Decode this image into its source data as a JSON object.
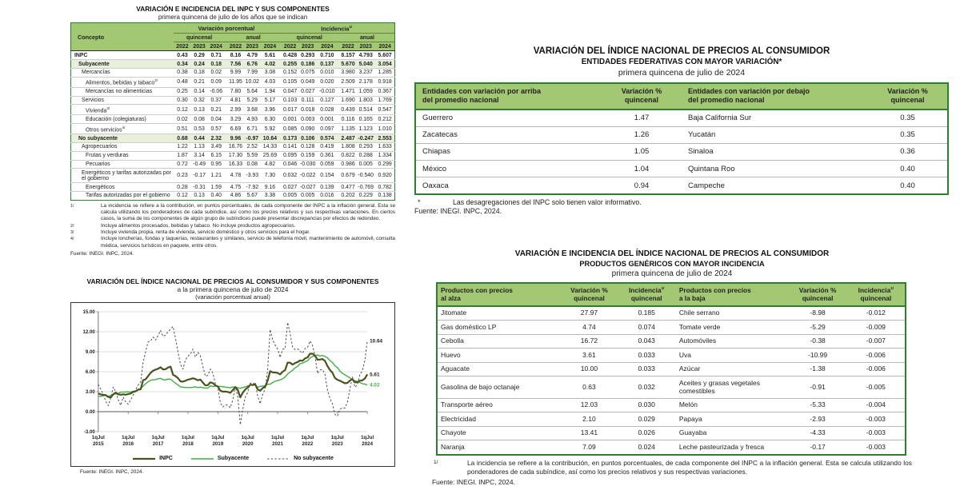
{
  "colors": {
    "header_green": "#a3c873",
    "border_green": "#2e7d33",
    "row_shade_green": "#e8f0db",
    "inpc_line": "#4c511f",
    "subyacente_line": "#3fae47",
    "no_subyacente_line": "#4f4f4f"
  },
  "table1": {
    "title": "VARIACIÓN E INCIDENCIA DEL INPC Y SUS COMPONENTES",
    "subtitle": "primera quincena de julio de los años que se indican",
    "col_concepto": "Concepto",
    "group1": "Variación porcentual",
    "group2": "Incidencia",
    "group2_sup": "1/",
    "sub_headers": [
      "quincenal",
      "anual",
      "quincenal",
      "anual"
    ],
    "years": [
      "2022",
      "2023",
      "2024"
    ],
    "rows": [
      {
        "label": "INPC",
        "sup": "",
        "indent": 0,
        "bold": true,
        "shade": false,
        "v": [
          "0.43",
          "0.29",
          "0.71",
          "8.16",
          "4.79",
          "5.61",
          "0.428",
          "0.293",
          "0.710",
          "8.157",
          "4.793",
          "5.607"
        ]
      },
      {
        "label": "Subyacente",
        "sup": "",
        "indent": 1,
        "bold": true,
        "shade": true,
        "v": [
          "0.34",
          "0.24",
          "0.18",
          "7.56",
          "6.76",
          "4.02",
          "0.255",
          "0.186",
          "0.137",
          "5.670",
          "5.040",
          "3.054"
        ]
      },
      {
        "label": "Mercancías",
        "sup": "",
        "indent": 2,
        "bold": false,
        "shade": false,
        "v": [
          "0.38",
          "0.18",
          "0.02",
          "9.99",
          "7.99",
          "3.08",
          "0.152",
          "0.075",
          "0.010",
          "3.980",
          "3.237",
          "1.285"
        ]
      },
      {
        "label": "Alimentos, bebidas y tabaco",
        "sup": "2/",
        "indent": 3,
        "bold": false,
        "shade": false,
        "v": [
          "0.48",
          "0.21",
          "0.09",
          "11.95",
          "10.02",
          "4.03",
          "0.105",
          "0.049",
          "0.020",
          "2.509",
          "2.178",
          "0.918"
        ]
      },
      {
        "label": "Mercancías no alimenticias",
        "sup": "",
        "indent": 3,
        "bold": false,
        "shade": false,
        "v": [
          "0.25",
          "0.14",
          "-0.06",
          "7.80",
          "5.64",
          "1.94",
          "0.047",
          "0.027",
          "-0.010",
          "1.471",
          "1.059",
          "0.367"
        ]
      },
      {
        "label": "Servicios",
        "sup": "",
        "indent": 2,
        "bold": false,
        "shade": false,
        "v": [
          "0.30",
          "0.32",
          "0.37",
          "4.81",
          "5.29",
          "5.17",
          "0.103",
          "0.111",
          "0.127",
          "1.690",
          "1.803",
          "1.769"
        ]
      },
      {
        "label": "Vivienda",
        "sup": "3/",
        "indent": 3,
        "bold": false,
        "shade": false,
        "v": [
          "0.12",
          "0.13",
          "0.21",
          "2.99",
          "3.68",
          "3.96",
          "0.017",
          "0.018",
          "0.028",
          "0.439",
          "0.514",
          "0.547"
        ]
      },
      {
        "label": "Educación (colegiaturas)",
        "sup": "",
        "indent": 3,
        "bold": false,
        "shade": false,
        "v": [
          "0.02",
          "0.08",
          "0.04",
          "3.29",
          "4.93",
          "6.30",
          "0.001",
          "0.003",
          "0.001",
          "0.116",
          "0.165",
          "0.212"
        ]
      },
      {
        "label": "Otros servicios",
        "sup": "4/",
        "indent": 3,
        "bold": false,
        "shade": false,
        "v": [
          "0.51",
          "0.53",
          "0.57",
          "6.69",
          "6.71",
          "5.92",
          "0.085",
          "0.090",
          "0.097",
          "1.135",
          "1.123",
          "1.010"
        ]
      },
      {
        "label": "No subyacente",
        "sup": "",
        "indent": 1,
        "bold": true,
        "shade": true,
        "v": [
          "0.68",
          "0.44",
          "2.32",
          "9.96",
          "-0.97",
          "10.64",
          "0.173",
          "0.106",
          "0.574",
          "2.487",
          "-0.247",
          "2.553"
        ]
      },
      {
        "label": "Agropecuarios",
        "sup": "",
        "indent": 2,
        "bold": false,
        "shade": false,
        "v": [
          "1.22",
          "1.13",
          "3.49",
          "16.76",
          "2.52",
          "14.33",
          "0.141",
          "0.128",
          "0.419",
          "1.808",
          "0.293",
          "1.633"
        ]
      },
      {
        "label": "Frutas y verduras",
        "sup": "",
        "indent": 3,
        "bold": false,
        "shade": false,
        "v": [
          "1.87",
          "3.14",
          "6.15",
          "17.30",
          "5.59",
          "25.69",
          "0.095",
          "0.159",
          "0.361",
          "0.822",
          "0.288",
          "1.334"
        ]
      },
      {
        "label": "Pecuarios",
        "sup": "",
        "indent": 3,
        "bold": false,
        "shade": false,
        "v": [
          "0.72",
          "-0.49",
          "0.95",
          "16.33",
          "0.08",
          "4.82",
          "0.046",
          "-0.030",
          "0.059",
          "0.986",
          "0.005",
          "0.299"
        ]
      },
      {
        "label": "Energéticos y tarifas autorizadas por el gobierno",
        "sup": "",
        "indent": 2,
        "bold": false,
        "shade": false,
        "v": [
          "0.23",
          "-0.17",
          "1.21",
          "4.78",
          "-3.93",
          "7.30",
          "0.032",
          "-0.022",
          "0.154",
          "0.679",
          "-0.540",
          "0.920"
        ]
      },
      {
        "label": "Energéticos",
        "sup": "",
        "indent": 3,
        "bold": false,
        "shade": false,
        "v": [
          "0.28",
          "-0.31",
          "1.59",
          "4.75",
          "-7.92",
          "9.16",
          "0.027",
          "-0.027",
          "0.139",
          "0.477",
          "-0.769",
          "0.782"
        ]
      },
      {
        "label": "Tarifas autorizadas por el gobierno",
        "sup": "",
        "indent": 3,
        "bold": false,
        "shade": false,
        "v": [
          "0.12",
          "0.13",
          "0.40",
          "4.86",
          "5.67",
          "3.38",
          "0.005",
          "0.005",
          "0.016",
          "0.202",
          "0.229",
          "0.138"
        ]
      }
    ],
    "footnotes": [
      {
        "mark": "1/",
        "text": "La incidencia se refiere a la contribución, en puntos porcentuales, de cada componente del INPC a la inflación general. Esta se calcula utilizando los ponderadores de cada subíndice, así como los precios relativos y sus respectivas variaciones. En ciertos casos, la suma de los componentes de algún grupo de subíndices puede presentar discrepancias por efectos de redondeo."
      },
      {
        "mark": "2/",
        "text": "Incluye alimentos procesados, bebidas y tabaco. No incluye productos agropecuarios."
      },
      {
        "mark": "3/",
        "text": "Incluye vivienda propia, renta de vivienda, servicio doméstico y otros servicios para el hogar."
      },
      {
        "mark": "4/",
        "text": "Incluye loncherías, fondas y taquerías, restaurantes y similares, servicio de telefonía móvil, mantenimiento de automóvil, consulta médica, servicios turísticos en paquete, entre otros."
      }
    ],
    "source": "Fuente: INEGI. INPC, 2024."
  },
  "chart": {
    "title": "VARIACIÓN DEL ÍNDICE NACIONAL DE PRECIOS AL CONSUMIDOR Y SUS COMPONENTES",
    "subtitle": "a la primera quincena de julio de 2024",
    "note": "(variación porcentual anual)",
    "source": "Fuente: INEGI. INPC, 2024."
  },
  "chart_data": {
    "type": "line",
    "title": "VARIACIÓN DEL ÍNDICE NACIONAL DE PRECIOS AL CONSUMIDOR Y SUS COMPONENTES",
    "subtitle": "a la primera quincena de julio de 2024 (variación porcentual anual)",
    "x_range": "1q julio 2015 – 1q julio 2024, datos quincenales/mensuales",
    "ylim": [
      -3,
      15
    ],
    "yticks": [
      15,
      12,
      9,
      6,
      3,
      0,
      -3
    ],
    "ytick_labels": [
      "15.00",
      "12.00",
      "9.00",
      "6.00",
      "3.00",
      "0.00",
      "-3.00"
    ],
    "x_tick_labels": [
      [
        "1qJul",
        "2015"
      ],
      [
        "1qJul",
        "2016"
      ],
      [
        "1qJul",
        "2017"
      ],
      [
        "1qJul",
        "2018"
      ],
      [
        "1qJul",
        "2019"
      ],
      [
        "1qJul",
        "2020"
      ],
      [
        "1qJul",
        "2021"
      ],
      [
        "1qJul",
        "2022"
      ],
      [
        "1qJul",
        "2023"
      ],
      [
        "1qJul",
        "2024"
      ]
    ],
    "grid": "horizontal",
    "legend_position": "bottom",
    "series": [
      {
        "id": "inpc",
        "name": "INPC",
        "color": "#4c511f",
        "width": 2.2,
        "dash": "",
        "end_label": "5.61",
        "label_color": "#1a1a1a",
        "values": [
          2.74,
          2.59,
          2.52,
          2.48,
          2.21,
          2.13,
          2.61,
          2.87,
          2.6,
          2.54,
          2.6,
          2.54,
          2.65,
          2.73,
          2.97,
          3.06,
          3.31,
          3.36,
          4.72,
          4.86,
          5.35,
          5.82,
          6.16,
          6.31,
          6.44,
          6.66,
          6.35,
          6.37,
          6.63,
          6.77,
          5.55,
          5.34,
          5.04,
          4.55,
          4.51,
          4.65,
          4.81,
          4.9,
          5.02,
          4.9,
          4.72,
          4.83,
          4.37,
          3.94,
          4.0,
          4.41,
          4.28,
          3.95,
          3.78,
          3.16,
          3.0,
          3.02,
          2.97,
          2.83,
          3.24,
          3.7,
          3.25,
          2.15,
          2.84,
          3.33,
          3.62,
          4.05,
          4.01,
          4.09,
          3.33,
          3.15,
          3.54,
          3.76,
          4.67,
          6.08,
          5.89,
          5.88,
          5.81,
          5.59,
          6.0,
          6.24,
          7.37,
          7.36,
          7.07,
          7.28,
          7.45,
          7.68,
          7.65,
          7.99,
          8.15,
          8.7,
          8.7,
          8.41,
          7.8,
          7.82,
          7.91,
          7.62,
          6.85,
          6.25,
          5.84,
          5.06,
          4.79,
          4.64,
          4.45,
          4.26,
          4.32,
          4.66,
          4.88,
          4.4,
          4.42,
          4.65,
          4.69,
          4.98,
          5.61
        ]
      },
      {
        "id": "subyacente",
        "name": "Subyacente",
        "color": "#3fae47",
        "width": 1.4,
        "dash": "",
        "end_label": "4.02",
        "label_color": "#3fae47",
        "values": [
          2.31,
          2.3,
          2.38,
          2.47,
          2.34,
          2.41,
          2.64,
          2.66,
          2.76,
          2.93,
          2.93,
          2.97,
          2.97,
          2.95,
          3.07,
          3.1,
          3.29,
          3.44,
          3.84,
          4.2,
          4.48,
          4.72,
          4.78,
          4.83,
          4.94,
          5.0,
          4.8,
          4.77,
          4.9,
          4.87,
          4.56,
          4.27,
          4.02,
          3.71,
          3.69,
          3.62,
          3.63,
          3.63,
          3.67,
          3.73,
          3.63,
          3.68,
          3.6,
          3.54,
          3.55,
          3.87,
          3.77,
          3.85,
          3.82,
          3.78,
          3.75,
          3.68,
          3.65,
          3.59,
          3.73,
          3.66,
          3.6,
          3.5,
          3.64,
          3.71,
          3.85,
          3.97,
          3.99,
          3.98,
          3.66,
          3.8,
          3.84,
          3.87,
          4.12,
          4.13,
          4.37,
          4.58,
          4.66,
          4.78,
          4.92,
          5.19,
          5.67,
          5.94,
          6.21,
          6.59,
          6.78,
          7.22,
          7.28,
          7.49,
          7.65,
          8.05,
          8.28,
          8.42,
          8.51,
          8.35,
          8.45,
          8.29,
          8.09,
          7.67,
          7.39,
          6.89,
          6.64,
          6.08,
          5.76,
          5.55,
          5.3,
          5.09,
          4.76,
          4.64,
          4.55,
          4.37,
          4.21,
          4.13,
          4.02
        ]
      },
      {
        "id": "no-subyacente",
        "name": "No subyacente",
        "color": "#4f4f4f",
        "width": 1,
        "dash": "2.5 2.2",
        "end_label": "10.64",
        "label_color": "#1a1a1a",
        "values": [
          4.1,
          3.4,
          2.6,
          1.55,
          0.9,
          2.1,
          3.7,
          3.0,
          1.8,
          0.95,
          2.2,
          1.45,
          1.1,
          1.75,
          2.5,
          3.3,
          4.0,
          4.4,
          7.4,
          9.0,
          10.5,
          10.6,
          11.2,
          10.75,
          11.4,
          12.2,
          11.3,
          11.5,
          12.0,
          12.4,
          12.79,
          11.0,
          9.0,
          7.07,
          6.4,
          7.79,
          8.33,
          8.65,
          9.4,
          8.2,
          8.9,
          8.39,
          6.81,
          5.3,
          5.47,
          6.4,
          5.78,
          4.19,
          3.64,
          1.28,
          0.71,
          1.01,
          0.98,
          0.59,
          1.76,
          3.81,
          2.19,
          -1.96,
          0.36,
          2.16,
          2.92,
          4.3,
          4.1,
          4.42,
          2.32,
          1.18,
          2.63,
          3.43,
          6.31,
          12.34,
          10.79,
          10.0,
          9.41,
          8.14,
          9.37,
          9.47,
          13.4,
          11.74,
          9.68,
          9.34,
          9.45,
          9.07,
          8.77,
          9.47,
          9.65,
          10.62,
          9.96,
          8.36,
          5.73,
          6.27,
          6.32,
          5.63,
          3.27,
          1.96,
          1.2,
          -0.4,
          -0.67,
          0.37,
          0.59,
          0.54,
          1.43,
          3.39,
          5.24,
          3.67,
          4.03,
          5.54,
          6.15,
          7.67,
          10.64
        ]
      }
    ]
  },
  "table2": {
    "title1": "VARIACIÓN DEL ÍNDICE NACIONAL DE PRECIOS AL CONSUMIDOR",
    "title2": "ENTIDADES FEDERATIVAS CON MAYOR VARIACIÓN*",
    "title3": "primera quincena de julio de 2024",
    "headers": {
      "above": "Entidades con variación por arriba\ndel promedio nacional",
      "var_above": "Variación %\nquincenal",
      "below": "Entidades con variación por debajo\ndel promedio nacional",
      "var_below": "Variación %\nquincenal"
    },
    "rows": [
      [
        "Guerrero",
        "1.47",
        "Baja California Sur",
        "0.35"
      ],
      [
        "Zacatecas",
        "1.26",
        "Yucatán",
        "0.35"
      ],
      [
        "Chiapas",
        "1.05",
        "Sinaloa",
        "0.36"
      ],
      [
        "México",
        "1.04",
        "Quintana Roo",
        "0.40"
      ],
      [
        "Oaxaca",
        "0.94",
        "Campeche",
        "0.40"
      ]
    ],
    "footnote_mark": "*",
    "footnote": "Las desagregaciones del INPC solo tienen valor informativo.",
    "source": "Fuente: INEGI. INPC, 2024."
  },
  "table3": {
    "title1": "VARIACIÓN E INCIDENCIA DEL ÍNDICE NACIONAL DE PRECIOS AL CONSUMIDOR",
    "title2": "PRODUCTOS GENÉRICOS CON MAYOR INCIDENCIA",
    "title3": "primera quincena de julio de 2024",
    "headers": {
      "up": "Productos con precios\nal alza",
      "var_up": "Variación %\nquincenal",
      "inc_up": "Incidencia",
      "inc_sup": "1/",
      "inc_sub": "quincenal",
      "down": "Productos con precios\na la baja",
      "var_down": "Variación %\nquincenal",
      "inc_down": "Incidencia"
    },
    "rows": [
      [
        "Jitomate",
        "27.97",
        "0.185",
        "Chile serrano",
        "-8.98",
        "-0.012"
      ],
      [
        "Gas doméstico LP",
        "4.74",
        "0.074",
        "Tomate verde",
        "-5.29",
        "-0.009"
      ],
      [
        "Cebolla",
        "16.72",
        "0.043",
        "Automóviles",
        "-0.38",
        "-0.007"
      ],
      [
        "Huevo",
        "3.61",
        "0.033",
        "Uva",
        "-10.99",
        "-0.006"
      ],
      [
        "Aguacate",
        "10.00",
        "0.033",
        "Azúcar",
        "-1.38",
        "-0.006"
      ],
      [
        "Gasolina de bajo octanaje",
        "0.63",
        "0.032",
        "Aceites y grasas vegetales comestibles",
        "-0.91",
        "-0.005"
      ],
      [
        "Transporte aéreo",
        "12.03",
        "0.030",
        "Melón",
        "-5.33",
        "-0.004"
      ],
      [
        "Electricidad",
        "2.10",
        "0.029",
        "Papaya",
        "-2.93",
        "-0.003"
      ],
      [
        "Chayote",
        "13.41",
        "0.026",
        "Guayaba",
        "-4.33",
        "-0.003"
      ],
      [
        "Naranja",
        "7.09",
        "0.024",
        "Leche pasteurizada y fresca",
        "-0.17",
        "-0.003"
      ]
    ],
    "footnote_mark": "1/",
    "footnote": "La incidencia se refiere a la contribución, en puntos porcentuales, de cada componente del INPC a la inflación general. Esta se calcula utilizando los ponderadores de cada subíndice, así como los precios relativos y sus respectivas variaciones.",
    "source": "Fuente: INEGI. INPC, 2024."
  }
}
